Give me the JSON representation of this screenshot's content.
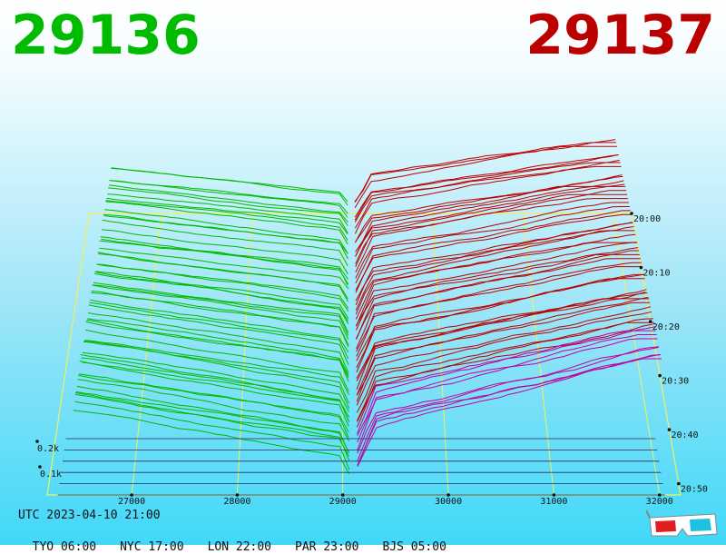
{
  "header": {
    "bid_price": "29136",
    "ask_price": "29137",
    "bid_color": "#00bb00",
    "ask_color": "#bb0000"
  },
  "footer": {
    "utc_label": "UTC 2023-04-10 21:00",
    "timezones": [
      {
        "label": "TYO 06:00"
      },
      {
        "label": "NYC 17:00"
      },
      {
        "label": "LON 22:00"
      },
      {
        "label": "PAR 23:00"
      },
      {
        "label": "BJS 05:00"
      }
    ]
  },
  "icons": {
    "glasses": "3d-glasses-icon"
  },
  "chart_data": {
    "type": "area",
    "x": [
      27000,
      28000,
      29000,
      30000,
      31000,
      32000
    ],
    "x_tick_labels": [
      "27000",
      "28000",
      "29000",
      "30000",
      "31000",
      "32000"
    ],
    "xlim": [
      26200,
      32200
    ],
    "time_tick_labels": [
      "20:00",
      "20:10",
      "20:20",
      "20:30",
      "20:40",
      "20:50"
    ],
    "depth_tick_labels": [
      "0.1k",
      "0.2k"
    ],
    "series": [
      {
        "side": "bid",
        "color": "#00bb00"
      },
      {
        "side": "ask",
        "color": "#bb0000"
      }
    ]
  }
}
